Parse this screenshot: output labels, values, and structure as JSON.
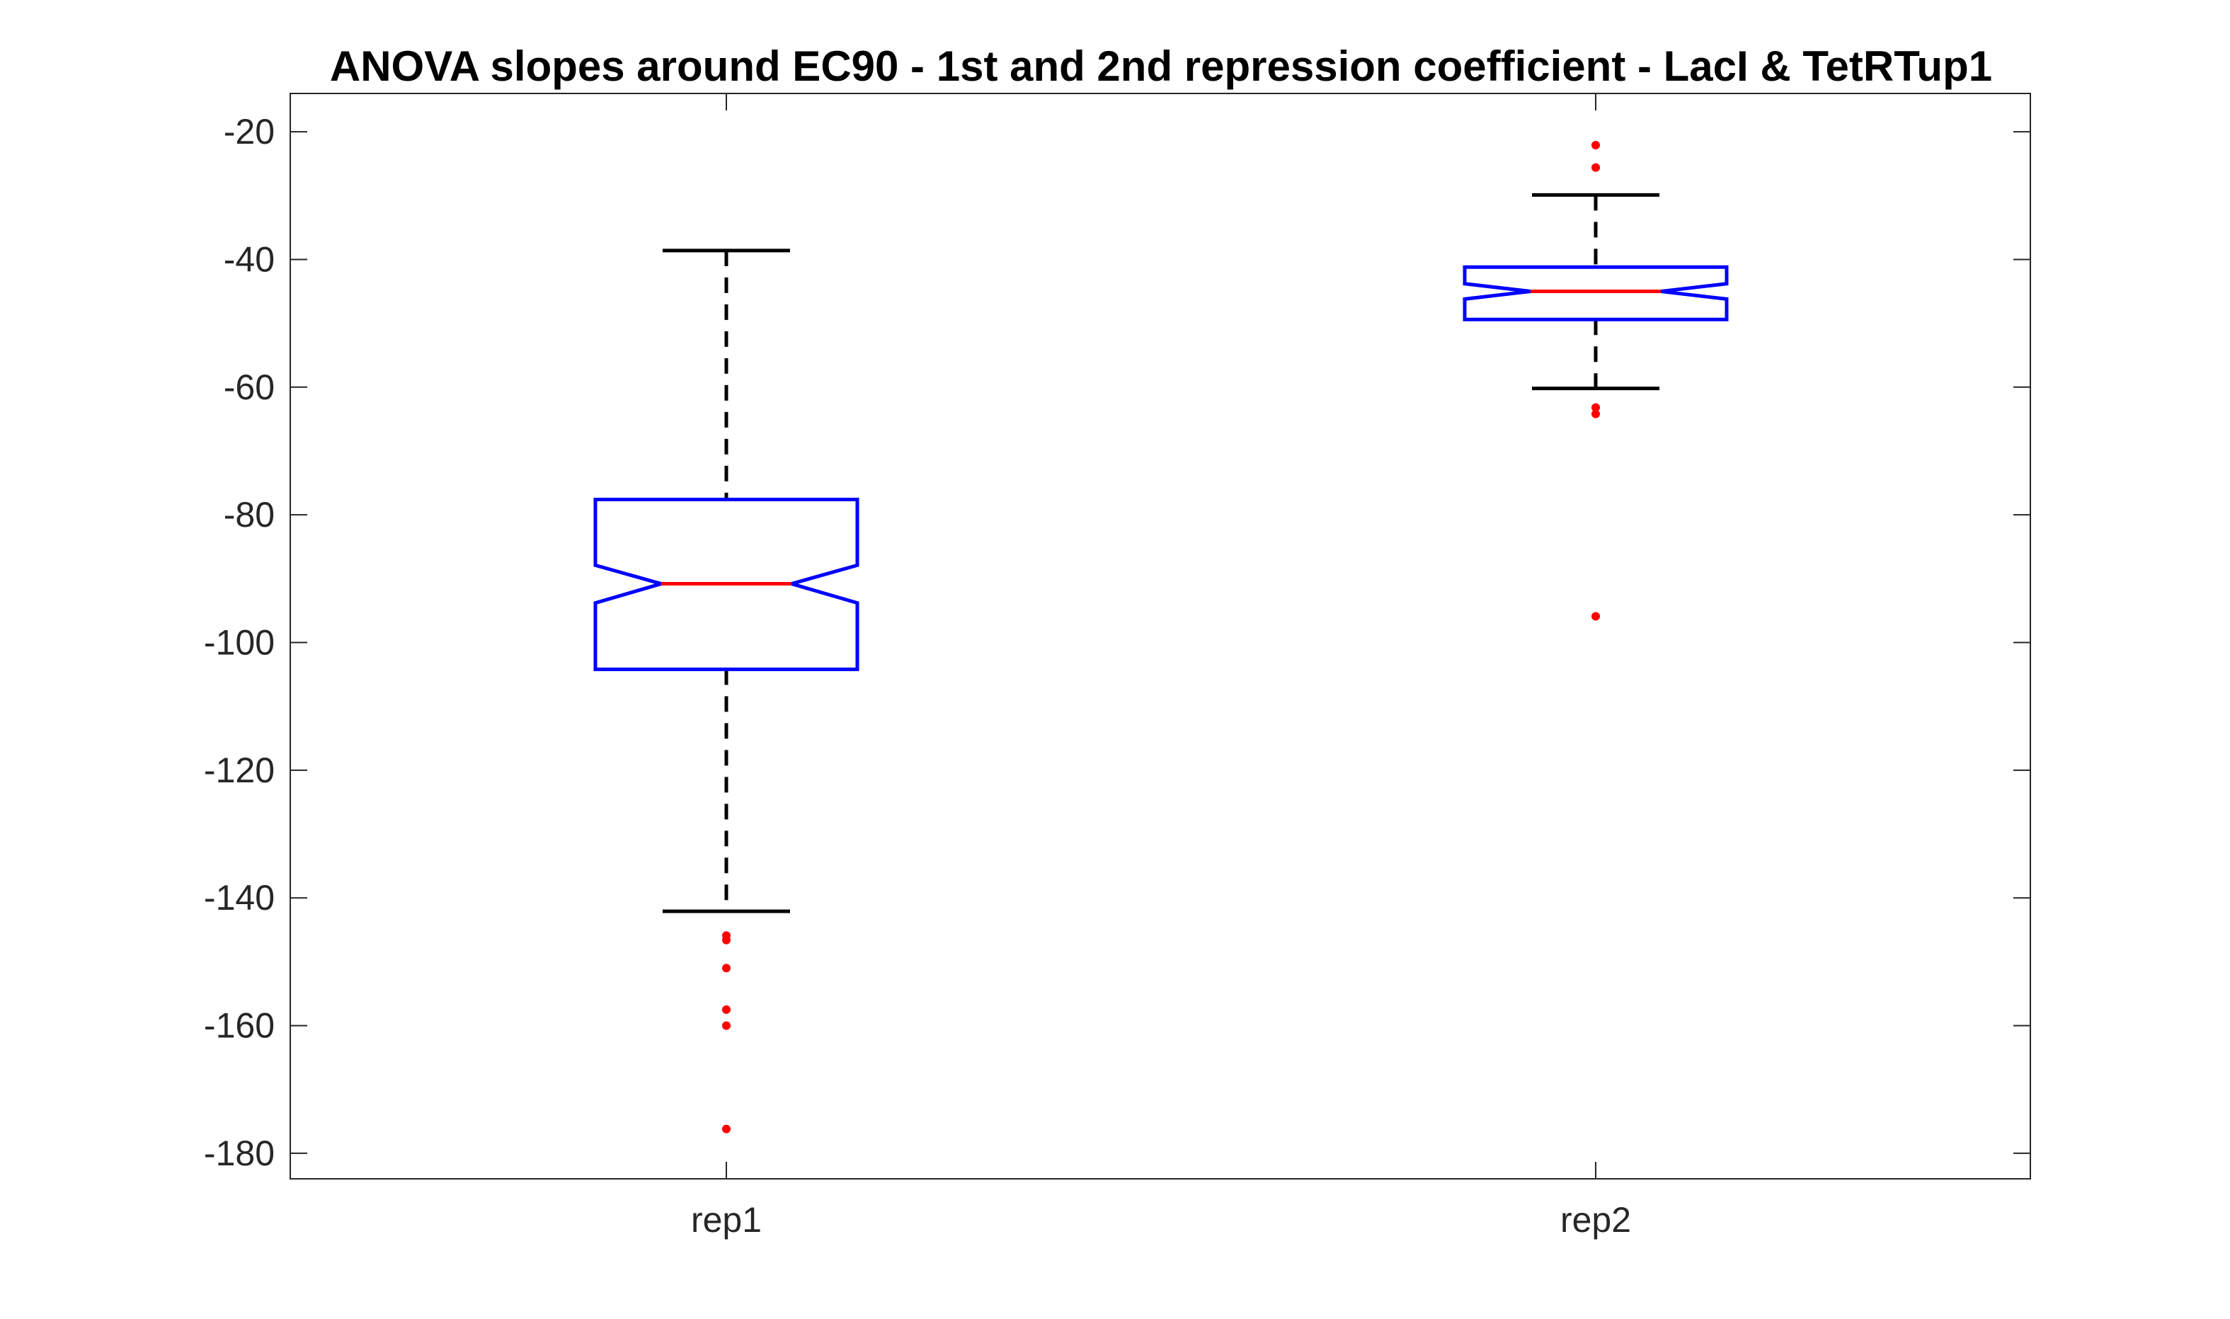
{
  "chart_data": {
    "type": "boxplot",
    "title": "ANOVA slopes around EC90 - 1st and 2nd repression coefficient - LacI & TetRTup1",
    "xlabel": "",
    "ylabel": "",
    "ylim": [
      -184,
      -14
    ],
    "yticks": [
      -20,
      -40,
      -60,
      -80,
      -100,
      -120,
      -140,
      -160,
      -180
    ],
    "notched": true,
    "grid": false,
    "categories": [
      "rep1",
      "rep2"
    ],
    "boxes": [
      {
        "label": "rep1",
        "median": -90.8,
        "q1": -104.2,
        "q3": -77.6,
        "whisker_low": -142.1,
        "whisker_high": -38.6,
        "notch_low": -93.8,
        "notch_high": -87.9,
        "outliers": [
          -145.9,
          -146.6,
          -151.0,
          -157.5,
          -160.0,
          -176.2
        ]
      },
      {
        "label": "rep2",
        "median": -45.0,
        "q1": -49.4,
        "q3": -41.2,
        "whisker_low": -60.2,
        "whisker_high": -29.9,
        "notch_low": -46.2,
        "notch_high": -43.8,
        "outliers": [
          -22.1,
          -25.6,
          -63.2,
          -64.2,
          -95.9
        ]
      }
    ],
    "colors": {
      "box": "#0000ff",
      "median": "#ff0000",
      "whisker": "#000000",
      "outlier": "#ff0000",
      "axis": "#262626"
    }
  }
}
